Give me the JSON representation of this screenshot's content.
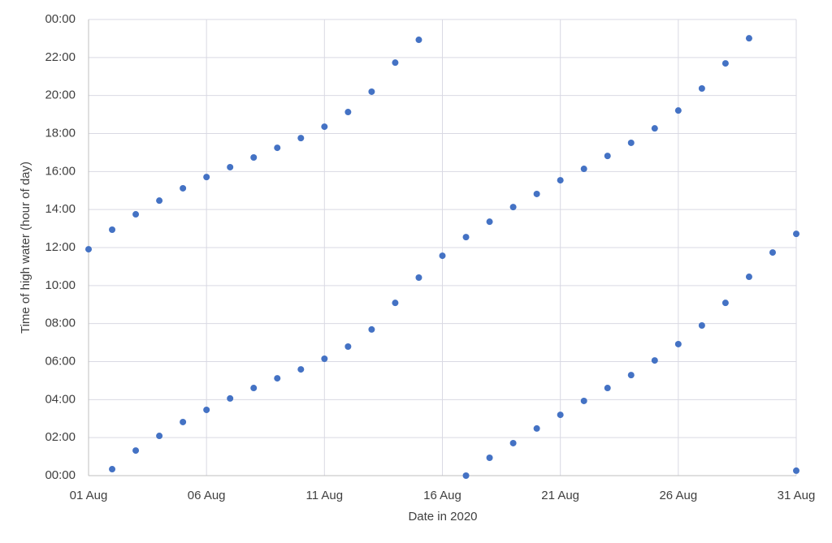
{
  "chart_data": {
    "type": "scatter",
    "x_label": "Date in 2020",
    "y_label": "Time of high water (hour of day)",
    "color": "#4472c4",
    "grid": true,
    "x": [
      1,
      2,
      2,
      3,
      3,
      4,
      4,
      5,
      5,
      6,
      6,
      7,
      7,
      8,
      8,
      9,
      9,
      10,
      10,
      11,
      11,
      12,
      12,
      13,
      13,
      14,
      14,
      15,
      15,
      16,
      17,
      17,
      18,
      18,
      19,
      19,
      20,
      20,
      21,
      21,
      22,
      22,
      23,
      23,
      24,
      24,
      25,
      25,
      26,
      26,
      27,
      27,
      28,
      28,
      29,
      29,
      30,
      31,
      31
    ],
    "values": [
      11.91,
      0.34,
      12.94,
      1.32,
      13.75,
      2.09,
      14.47,
      2.82,
      15.12,
      3.46,
      15.71,
      4.06,
      16.23,
      4.61,
      16.74,
      5.12,
      17.25,
      5.59,
      17.76,
      6.15,
      18.36,
      6.79,
      19.13,
      7.69,
      20.2,
      9.09,
      21.73,
      10.42,
      22.93,
      11.57,
      0.0,
      12.55,
      0.94,
      13.36,
      1.71,
      14.13,
      2.48,
      14.82,
      3.2,
      15.54,
      3.93,
      16.14,
      4.61,
      16.82,
      5.29,
      17.51,
      6.06,
      18.27,
      6.92,
      19.21,
      7.9,
      20.37,
      9.09,
      21.69,
      10.46,
      23.01,
      11.74,
      0.26,
      12.72
    ],
    "xlim": [
      1,
      31
    ],
    "xticks": [
      {
        "value": 1,
        "label": "01 Aug"
      },
      {
        "value": 6,
        "label": "06 Aug"
      },
      {
        "value": 11,
        "label": "11 Aug"
      },
      {
        "value": 16,
        "label": "16 Aug"
      },
      {
        "value": 21,
        "label": "21 Aug"
      },
      {
        "value": 26,
        "label": "26 Aug"
      },
      {
        "value": 31,
        "label": "31 Aug"
      }
    ],
    "ylim": [
      0,
      24
    ],
    "yticks": [
      {
        "value": 0,
        "label": "00:00"
      },
      {
        "value": 2,
        "label": "02:00"
      },
      {
        "value": 4,
        "label": "04:00"
      },
      {
        "value": 6,
        "label": "06:00"
      },
      {
        "value": 8,
        "label": "08:00"
      },
      {
        "value": 10,
        "label": "10:00"
      },
      {
        "value": 12,
        "label": "12:00"
      },
      {
        "value": 14,
        "label": "14:00"
      },
      {
        "value": 16,
        "label": "16:00"
      },
      {
        "value": 18,
        "label": "18:00"
      },
      {
        "value": 20,
        "label": "20:00"
      },
      {
        "value": 22,
        "label": "22:00"
      },
      {
        "value": 24,
        "label": "00:00"
      }
    ]
  }
}
